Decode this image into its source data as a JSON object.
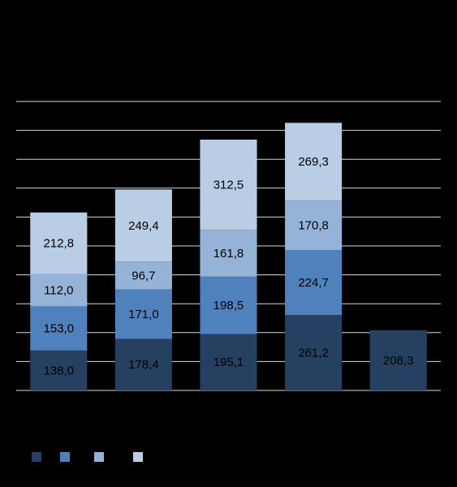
{
  "chart_data": {
    "type": "stacked-bar",
    "categories": [
      null,
      null,
      null,
      null,
      null
    ],
    "series": [
      {
        "color": "#254061",
        "values": [
          138.0,
          178.4,
          195.1,
          261.2,
          208.3
        ],
        "value_labels": [
          "138,0",
          "178,4",
          "195,1",
          "261,2",
          "208,3"
        ]
      },
      {
        "color": "#4f81bd",
        "values": [
          153.0,
          171.0,
          198.5,
          224.7,
          null
        ],
        "value_labels": [
          "153,0",
          "171,0",
          "198,5",
          "224,7",
          null
        ]
      },
      {
        "color": "#95b3d7",
        "values": [
          112.0,
          96.7,
          161.8,
          170.8,
          null
        ],
        "value_labels": [
          "112,0",
          "96,7",
          "161,8",
          "170,8",
          null
        ]
      },
      {
        "color": "#b9cde5",
        "values": [
          212.8,
          249.4,
          312.5,
          269.3,
          null
        ],
        "value_labels": [
          "212,8",
          "249,4",
          "312,5",
          "269,3",
          null
        ]
      }
    ],
    "ylim": [
      0,
      1000
    ],
    "yticks": [
      0,
      100,
      200,
      300,
      400,
      500,
      600,
      700,
      800,
      900,
      1000
    ],
    "grid": true
  }
}
